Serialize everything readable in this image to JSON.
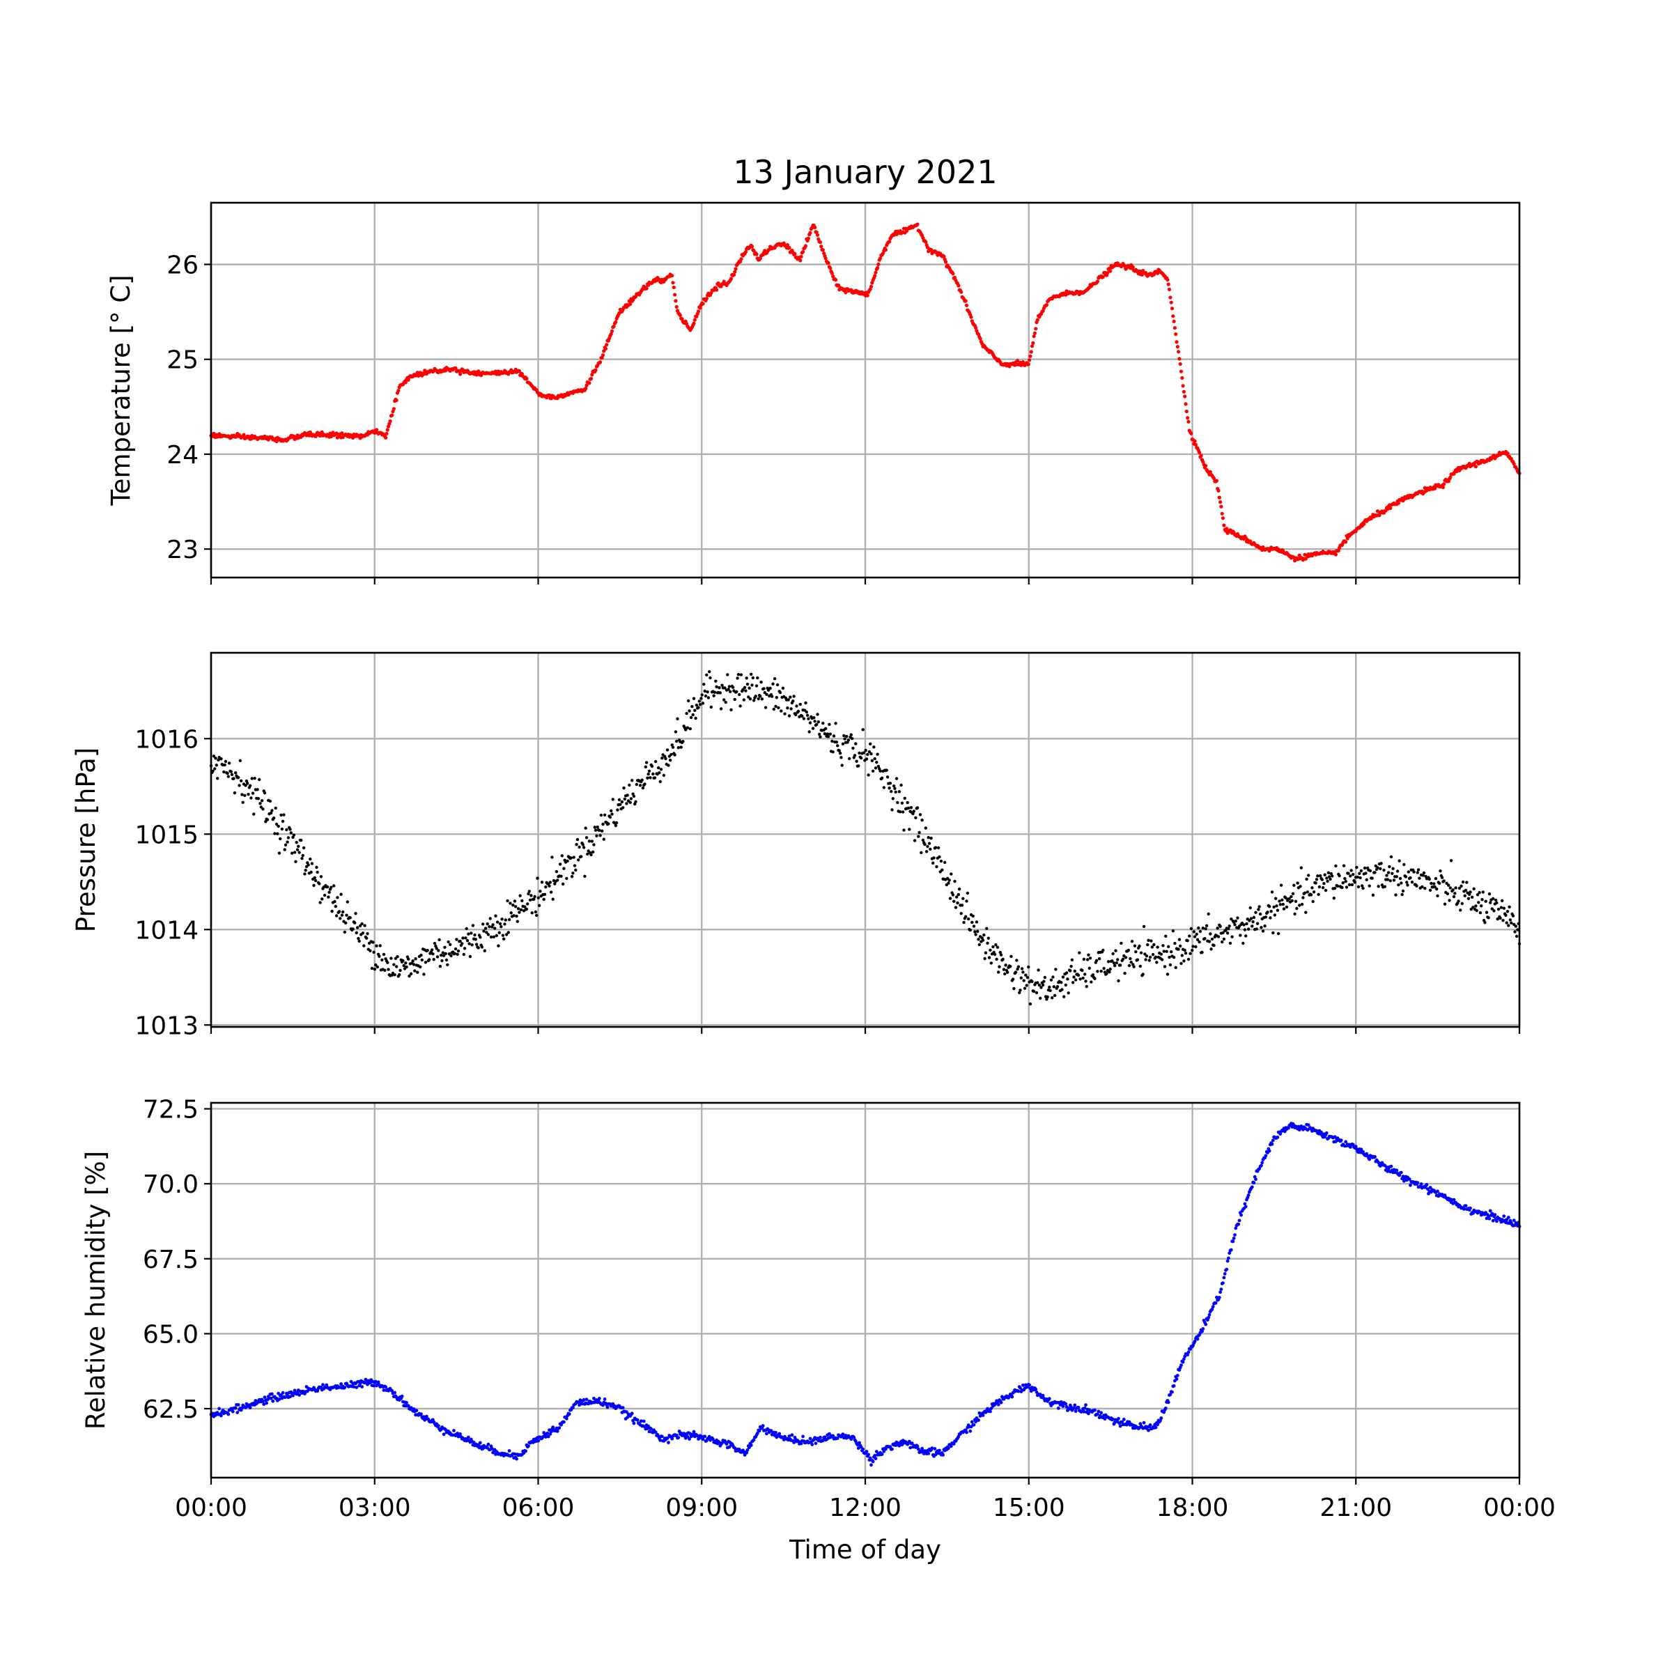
{
  "chart_data": {
    "title": "13 January 2021",
    "xlabel": "Time of day",
    "x_tick_labels": [
      "00:00",
      "03:00",
      "06:00",
      "09:00",
      "12:00",
      "15:00",
      "18:00",
      "21:00",
      "00:00"
    ],
    "x_range_hours": [
      0,
      24
    ],
    "x_tick_hours": [
      0,
      3,
      6,
      9,
      12,
      15,
      18,
      21,
      24
    ],
    "grid": true,
    "shared_x": true,
    "panels": [
      {
        "name": "temperature",
        "type": "scatter",
        "color": "#ff0000",
        "ylabel": "Temperature [° C]",
        "ylim": [
          22.7,
          26.65
        ],
        "yticks": [
          23,
          24,
          25,
          26
        ],
        "ytick_labels": [
          "23",
          "24",
          "25",
          "26"
        ],
        "marker_radius": 2.6,
        "noise": 0.012,
        "x": [
          0,
          0.5,
          1,
          1.3,
          1.8,
          2.3,
          2.8,
          3.05,
          3.2,
          3.45,
          3.65,
          4,
          4.4,
          4.8,
          5.2,
          5.6,
          5.8,
          6.05,
          6.3,
          6.6,
          6.85,
          7.15,
          7.5,
          7.9,
          8.15,
          8.3,
          8.45,
          8.55,
          8.8,
          9,
          9.3,
          9.5,
          9.75,
          9.9,
          10.05,
          10.2,
          10.5,
          10.8,
          11.05,
          11.25,
          11.5,
          11.75,
          12.05,
          12.3,
          12.5,
          12.75,
          12.95,
          13.15,
          13.4,
          13.65,
          13.9,
          14.15,
          14.5,
          14.8,
          15,
          15.15,
          15.4,
          15.75,
          16.05,
          16.3,
          16.6,
          16.85,
          17.2,
          17.4,
          17.55,
          17.75,
          17.95,
          18.25,
          18.45,
          18.6,
          18.9,
          19.3,
          19.55,
          19.9,
          20.3,
          20.6,
          20.9,
          21.2,
          21.5,
          21.8,
          22.1,
          22.3,
          22.6,
          22.9,
          23.2,
          23.5,
          23.75,
          24
        ],
        "y": [
          24.2,
          24.18,
          24.17,
          24.15,
          24.21,
          24.2,
          24.19,
          24.25,
          24.17,
          24.7,
          24.82,
          24.87,
          24.9,
          24.86,
          24.85,
          24.88,
          24.78,
          24.62,
          24.6,
          24.65,
          24.68,
          25,
          25.5,
          25.72,
          25.85,
          25.82,
          25.9,
          25.5,
          25.3,
          25.6,
          25.78,
          25.8,
          26.1,
          26.2,
          26.05,
          26.15,
          26.22,
          26.05,
          26.42,
          26.1,
          25.75,
          25.72,
          25.68,
          26.1,
          26.32,
          26.35,
          26.42,
          26.17,
          26.1,
          25.85,
          25.5,
          25.15,
          24.95,
          24.95,
          24.95,
          25.4,
          25.65,
          25.7,
          25.72,
          25.85,
          26.0,
          25.97,
          25.88,
          25.93,
          25.85,
          25.05,
          24.25,
          23.85,
          23.7,
          23.2,
          23.13,
          23.0,
          23.0,
          22.9,
          22.95,
          22.95,
          23.15,
          23.3,
          23.4,
          23.5,
          23.58,
          23.62,
          23.68,
          23.85,
          23.9,
          23.96,
          24.02,
          23.8
        ]
      },
      {
        "name": "pressure",
        "type": "scatter",
        "color": "#000000",
        "ylabel": "Pressure [hPa]",
        "ylim": [
          1012.98,
          1016.9
        ],
        "yticks": [
          1013,
          1014,
          1015,
          1016
        ],
        "ytick_labels": [
          "1013",
          "1014",
          "1015",
          "1016"
        ],
        "marker_radius": 2.2,
        "noise": 0.09,
        "x": [
          0,
          0.5,
          1,
          1.5,
          2,
          2.5,
          3,
          3.3,
          3.7,
          4,
          4.5,
          5,
          5.5,
          6,
          6.5,
          7,
          7.5,
          8,
          8.5,
          9,
          9.5,
          10,
          10.5,
          11,
          11.5,
          12,
          12.5,
          13,
          13.5,
          14,
          14.5,
          15,
          15.3,
          15.6,
          16,
          16.5,
          17,
          17.5,
          18,
          18.5,
          19,
          19.5,
          20,
          20.5,
          21,
          21.5,
          22,
          22.5,
          23,
          23.5,
          24
        ],
        "y": [
          1015.8,
          1015.6,
          1015.3,
          1014.9,
          1014.5,
          1014.1,
          1013.8,
          1013.6,
          1013.6,
          1013.75,
          1013.8,
          1013.95,
          1014.15,
          1014.35,
          1014.65,
          1014.95,
          1015.3,
          1015.6,
          1015.9,
          1016.45,
          1016.55,
          1016.5,
          1016.4,
          1016.2,
          1015.95,
          1015.85,
          1015.5,
          1015.05,
          1014.55,
          1014.0,
          1013.65,
          1013.45,
          1013.35,
          1013.45,
          1013.55,
          1013.65,
          1013.7,
          1013.75,
          1013.85,
          1013.95,
          1014.05,
          1014.2,
          1014.35,
          1014.5,
          1014.55,
          1014.58,
          1014.55,
          1014.45,
          1014.35,
          1014.2,
          1014.0
        ]
      },
      {
        "name": "humidity",
        "type": "scatter",
        "color": "#0000ff",
        "ylabel": "Relative humidity [%]",
        "ylim": [
          60.2,
          72.7
        ],
        "yticks": [
          62.5,
          65.0,
          67.5,
          70.0,
          72.5
        ],
        "ytick_labels": [
          "62.5",
          "65.0",
          "67.5",
          "70.0",
          "72.5"
        ],
        "marker_radius": 2.4,
        "noise": 0.06,
        "x": [
          0,
          0.5,
          1,
          1.5,
          2,
          2.5,
          3,
          3.3,
          3.8,
          4.3,
          5,
          5.6,
          5.9,
          6.4,
          6.7,
          7.1,
          7.4,
          7.8,
          8.3,
          8.5,
          8.8,
          9.1,
          9.5,
          9.8,
          10.1,
          10.5,
          11,
          11.5,
          11.8,
          12.1,
          12.4,
          12.7,
          13,
          13.4,
          13.8,
          14.2,
          14.6,
          15,
          15.3,
          15.7,
          16.2,
          16.7,
          17,
          17.3,
          17.5,
          17.8,
          18.2,
          18.5,
          18.8,
          19.2,
          19.5,
          19.8,
          20.2,
          20.6,
          21,
          21.5,
          22,
          22.5,
          23,
          23.5,
          24
        ],
        "y": [
          62.3,
          62.5,
          62.8,
          63.0,
          63.2,
          63.25,
          63.4,
          63.1,
          62.3,
          61.8,
          61.2,
          60.9,
          61.4,
          61.9,
          62.7,
          62.75,
          62.6,
          62.1,
          61.5,
          61.6,
          61.6,
          61.5,
          61.3,
          61.0,
          61.9,
          61.5,
          61.4,
          61.6,
          61.5,
          60.8,
          61.2,
          61.4,
          61.1,
          61.0,
          61.7,
          62.4,
          62.9,
          63.3,
          62.8,
          62.6,
          62.4,
          62.0,
          61.9,
          61.85,
          62.5,
          64.0,
          65.2,
          66.3,
          68.5,
          70.4,
          71.5,
          71.95,
          71.8,
          71.5,
          71.2,
          70.6,
          70.1,
          69.7,
          69.2,
          68.9,
          68.6
        ]
      }
    ]
  }
}
